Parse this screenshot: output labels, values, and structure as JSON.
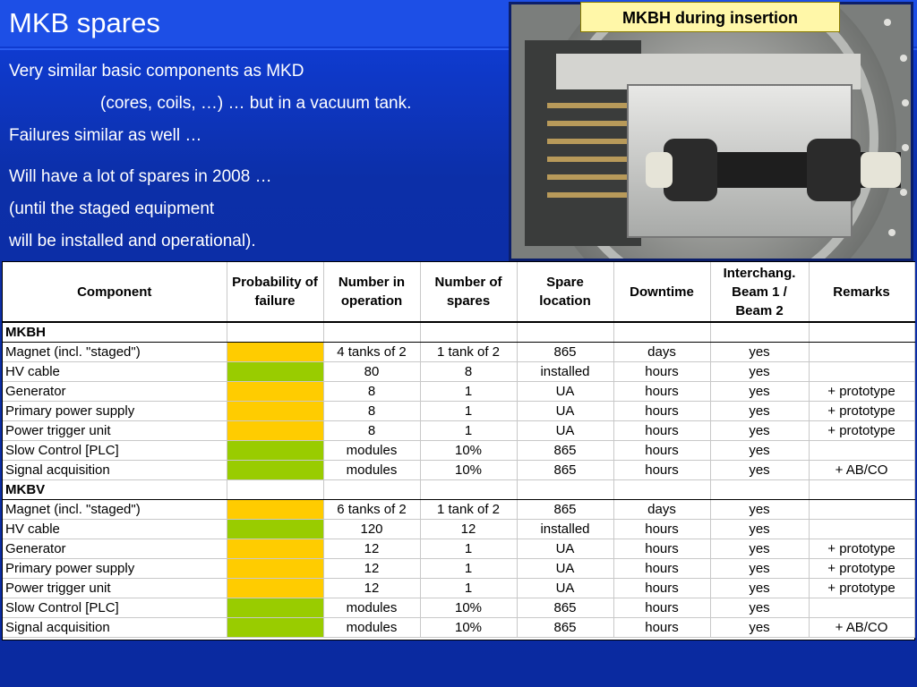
{
  "slide": {
    "title": "MKB spares",
    "bullets": [
      "Very similar basic components as MKD",
      "(cores, coils, …) … but in a vacuum tank.",
      "Failures similar as well …",
      "Will have a lot of spares in 2008 …",
      "(until the staged equipment",
      "will be installed and operational)."
    ]
  },
  "photo": {
    "caption": "MKBH during insertion"
  },
  "table": {
    "headers": [
      "Component",
      "Probability of failure",
      "Number in operation",
      "Number of spares",
      "Spare location",
      "Downtime",
      "Interchang. Beam 1 / Beam 2",
      "Remarks"
    ],
    "colors": {
      "yellow": "#ffcc00",
      "green": "#99cc00"
    },
    "groups": [
      {
        "name": "MKBH",
        "rows": [
          {
            "component": "Magnet (incl. \"staged\")",
            "prob": "yellow",
            "num_op": "4 tanks of 2",
            "num_spares": "1 tank of 2",
            "location": "865",
            "downtime": "days",
            "interchang": "yes",
            "remarks": ""
          },
          {
            "component": "HV cable",
            "prob": "green",
            "num_op": "80",
            "num_spares": "8",
            "location": "installed",
            "downtime": "hours",
            "interchang": "yes",
            "remarks": ""
          },
          {
            "component": "Generator",
            "prob": "yellow",
            "num_op": "8",
            "num_spares": "1",
            "location": "UA",
            "downtime": "hours",
            "interchang": "yes",
            "remarks": "+ prototype"
          },
          {
            "component": "Primary power supply",
            "prob": "yellow",
            "num_op": "8",
            "num_spares": "1",
            "location": "UA",
            "downtime": "hours",
            "interchang": "yes",
            "remarks": "+ prototype"
          },
          {
            "component": "Power trigger unit",
            "prob": "yellow",
            "num_op": "8",
            "num_spares": "1",
            "location": "UA",
            "downtime": "hours",
            "interchang": "yes",
            "remarks": "+ prototype"
          },
          {
            "component": "Slow Control [PLC]",
            "prob": "green",
            "num_op": "modules",
            "num_spares": "10%",
            "location": "865",
            "downtime": "hours",
            "interchang": "yes",
            "remarks": ""
          },
          {
            "component": "Signal acquisition",
            "prob": "green",
            "num_op": "modules",
            "num_spares": "10%",
            "location": "865",
            "downtime": "hours",
            "interchang": "yes",
            "remarks": "+ AB/CO"
          }
        ]
      },
      {
        "name": "MKBV",
        "rows": [
          {
            "component": "Magnet (incl. \"staged\")",
            "prob": "yellow",
            "num_op": "6 tanks of 2",
            "num_spares": "1 tank of 2",
            "location": "865",
            "downtime": "days",
            "interchang": "yes",
            "remarks": ""
          },
          {
            "component": "HV cable",
            "prob": "green",
            "num_op": "120",
            "num_spares": "12",
            "location": "installed",
            "downtime": "hours",
            "interchang": "yes",
            "remarks": ""
          },
          {
            "component": "Generator",
            "prob": "yellow",
            "num_op": "12",
            "num_spares": "1",
            "location": "UA",
            "downtime": "hours",
            "interchang": "yes",
            "remarks": "+ prototype"
          },
          {
            "component": "Primary power supply",
            "prob": "yellow",
            "num_op": "12",
            "num_spares": "1",
            "location": "UA",
            "downtime": "hours",
            "interchang": "yes",
            "remarks": "+ prototype"
          },
          {
            "component": "Power trigger unit",
            "prob": "yellow",
            "num_op": "12",
            "num_spares": "1",
            "location": "UA",
            "downtime": "hours",
            "interchang": "yes",
            "remarks": "+ prototype"
          },
          {
            "component": "Slow Control [PLC]",
            "prob": "green",
            "num_op": "modules",
            "num_spares": "10%",
            "location": "865",
            "downtime": "hours",
            "interchang": "yes",
            "remarks": ""
          },
          {
            "component": "Signal acquisition",
            "prob": "green",
            "num_op": "modules",
            "num_spares": "10%",
            "location": "865",
            "downtime": "hours",
            "interchang": "yes",
            "remarks": "+ AB/CO"
          }
        ]
      }
    ]
  }
}
